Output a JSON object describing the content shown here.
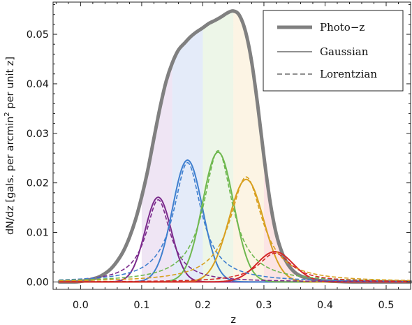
{
  "chart_data": {
    "type": "line",
    "title": "",
    "xlabel": "z",
    "ylabel": "dN/dz [gals. per arcmin",
    "ylabel_sup": "2",
    "ylabel_tail": " per unit z]",
    "xlim": [
      -0.045,
      0.54
    ],
    "ylim": [
      -0.0015,
      0.0565
    ],
    "x_ticks": [
      0.0,
      0.1,
      0.2,
      0.3,
      0.4,
      0.5
    ],
    "x_tick_labels": [
      "0.0",
      "0.1",
      "0.2",
      "0.3",
      "0.4",
      "0.5"
    ],
    "y_ticks": [
      0.0,
      0.01,
      0.02,
      0.03,
      0.04,
      0.05
    ],
    "y_tick_labels": [
      "0.00",
      "0.01",
      "0.02",
      "0.03",
      "0.04",
      "0.05"
    ],
    "grid": false,
    "legend_position": "top-right",
    "legend": [
      {
        "label": "Photo−z",
        "style": "thick-solid",
        "color": "#808080"
      },
      {
        "label": "Gaussian",
        "style": "solid",
        "color": "#808080"
      },
      {
        "label": "Lorentzian",
        "style": "dashed",
        "color": "#808080"
      }
    ],
    "photo_z": {
      "name": "Photo−z",
      "color": "#808080",
      "x": [
        -0.035,
        -0.01,
        0.0,
        0.01,
        0.02,
        0.03,
        0.04,
        0.05,
        0.06,
        0.07,
        0.08,
        0.09,
        0.1,
        0.11,
        0.12,
        0.13,
        0.14,
        0.15,
        0.16,
        0.17,
        0.18,
        0.19,
        0.2,
        0.21,
        0.22,
        0.23,
        0.24,
        0.25,
        0.26,
        0.27,
        0.28,
        0.29,
        0.3,
        0.31,
        0.32,
        0.33,
        0.34,
        0.35,
        0.36,
        0.37,
        0.38,
        0.39,
        0.4,
        0.42,
        0.45,
        0.5,
        0.54
      ],
      "y": [
        0.0,
        0.0,
        0.0001,
        0.0003,
        0.0006,
        0.001,
        0.0017,
        0.0027,
        0.0042,
        0.0062,
        0.009,
        0.0126,
        0.0172,
        0.0226,
        0.029,
        0.0352,
        0.0405,
        0.0442,
        0.0468,
        0.0482,
        0.0495,
        0.0505,
        0.0513,
        0.0522,
        0.0528,
        0.0535,
        0.0543,
        0.0547,
        0.0538,
        0.0505,
        0.0444,
        0.0355,
        0.0253,
        0.0163,
        0.0098,
        0.0058,
        0.0034,
        0.002,
        0.0012,
        0.0008,
        0.0005,
        0.0003,
        0.0002,
        0.0001,
        0.0,
        0.0,
        0.0
      ]
    },
    "bands": [
      {
        "from": 0.1,
        "to": 0.15,
        "color": "#b07cc6"
      },
      {
        "from": 0.15,
        "to": 0.2,
        "color": "#7a9de0"
      },
      {
        "from": 0.2,
        "to": 0.25,
        "color": "#a6d28c"
      },
      {
        "from": 0.25,
        "to": 0.3,
        "color": "#eec97a"
      },
      {
        "from": 0.3,
        "to": 0.35,
        "color": "#f07a7a"
      }
    ],
    "series": [
      {
        "color": "#7b2a8c",
        "mu": 0.127,
        "amplitude": 0.0171,
        "sigma": 0.0215,
        "lorentz_amplitude": 0.0166,
        "lorentz_gamma": 0.024
      },
      {
        "color": "#3f7fcf",
        "mu": 0.175,
        "amplitude": 0.0246,
        "sigma": 0.0245,
        "lorentz_amplitude": 0.0241,
        "lorentz_gamma": 0.0275
      },
      {
        "color": "#6fb84f",
        "mu": 0.225,
        "amplitude": 0.0262,
        "sigma": 0.0255,
        "lorentz_amplitude": 0.0265,
        "lorentz_gamma": 0.0285
      },
      {
        "color": "#d8a020",
        "mu": 0.271,
        "amplitude": 0.0207,
        "sigma": 0.0285,
        "lorentz_amplitude": 0.0212,
        "lorentz_gamma": 0.032
      },
      {
        "color": "#d42828",
        "mu": 0.318,
        "amplitude": 0.0061,
        "sigma": 0.0295,
        "lorentz_amplitude": 0.0058,
        "lorentz_gamma": 0.033
      }
    ]
  }
}
